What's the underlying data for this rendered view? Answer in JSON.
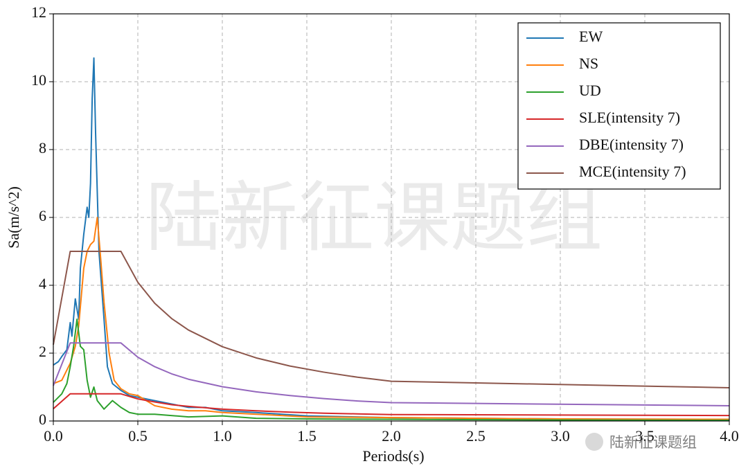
{
  "chart_data": {
    "type": "line",
    "xlabel": "Periods(s)",
    "ylabel": "Sa(m/s^2)",
    "xlim": [
      0,
      4
    ],
    "ylim": [
      0,
      12
    ],
    "xticks": [
      {
        "value": 0,
        "label": "0.0"
      },
      0.5,
      {
        "value": 1,
        "label": "1.0"
      },
      1.5,
      {
        "value": 2,
        "label": "2.0"
      },
      2.5,
      {
        "value": 3,
        "label": "3.0"
      },
      3.5,
      {
        "value": 4,
        "label": "4.0"
      }
    ],
    "yticks": [
      0,
      2,
      4,
      6,
      8,
      10,
      12
    ],
    "grid": true,
    "legend": "upper right",
    "watermark": "陆新征课题组",
    "series": [
      {
        "name": "EW",
        "color": "#1f77b4",
        "x": [
          0,
          0.03,
          0.05,
          0.08,
          0.1,
          0.11,
          0.13,
          0.15,
          0.16,
          0.18,
          0.2,
          0.21,
          0.22,
          0.23,
          0.24,
          0.25,
          0.27,
          0.3,
          0.32,
          0.35,
          0.4,
          0.45,
          0.5,
          0.6,
          0.7,
          0.8,
          0.9,
          1.0,
          1.2,
          1.5,
          2.0,
          3.0,
          4.0
        ],
        "values": [
          1.65,
          1.75,
          1.9,
          2.1,
          2.9,
          2.5,
          3.6,
          3.0,
          4.5,
          5.5,
          6.3,
          6.0,
          7.0,
          9.5,
          10.7,
          8.5,
          5.0,
          3.0,
          1.6,
          1.1,
          0.9,
          0.75,
          0.7,
          0.6,
          0.5,
          0.4,
          0.4,
          0.3,
          0.25,
          0.15,
          0.1,
          0.06,
          0.05
        ]
      },
      {
        "name": "NS",
        "color": "#ff7f0e",
        "x": [
          0,
          0.05,
          0.1,
          0.13,
          0.15,
          0.18,
          0.2,
          0.22,
          0.24,
          0.26,
          0.28,
          0.3,
          0.33,
          0.36,
          0.4,
          0.45,
          0.5,
          0.6,
          0.7,
          0.8,
          0.9,
          1.0,
          1.2,
          1.5,
          2.0,
          3.0,
          4.0
        ],
        "values": [
          1.1,
          1.2,
          1.7,
          2.2,
          2.8,
          4.5,
          5.0,
          5.2,
          5.3,
          6.0,
          4.8,
          3.5,
          2.0,
          1.2,
          0.95,
          0.8,
          0.75,
          0.45,
          0.35,
          0.3,
          0.3,
          0.25,
          0.2,
          0.12,
          0.1,
          0.06,
          0.05
        ]
      },
      {
        "name": "UD",
        "color": "#2ca02c",
        "x": [
          0,
          0.05,
          0.08,
          0.1,
          0.12,
          0.14,
          0.16,
          0.18,
          0.2,
          0.22,
          0.24,
          0.26,
          0.3,
          0.35,
          0.4,
          0.45,
          0.5,
          0.6,
          0.8,
          1.0,
          1.2,
          1.5,
          2.0,
          3.0,
          4.0
        ],
        "values": [
          0.55,
          0.8,
          1.1,
          1.6,
          2.2,
          3.0,
          2.2,
          2.1,
          1.2,
          0.7,
          1.0,
          0.6,
          0.35,
          0.6,
          0.4,
          0.25,
          0.2,
          0.2,
          0.12,
          0.15,
          0.08,
          0.06,
          0.05,
          0.03,
          0.02
        ]
      },
      {
        "name": "SLE(intensity 7)",
        "color": "#d62728",
        "x": [
          0,
          0.1,
          0.4,
          0.5,
          0.6,
          0.7,
          0.8,
          1.0,
          1.2,
          1.4,
          1.6,
          1.8,
          2.0,
          4.0
        ],
        "values": [
          0.36,
          0.8,
          0.8,
          0.65,
          0.56,
          0.48,
          0.43,
          0.35,
          0.3,
          0.26,
          0.23,
          0.21,
          0.19,
          0.16
        ]
      },
      {
        "name": "DBE(intensity 7)",
        "color": "#9467bd",
        "x": [
          0,
          0.1,
          0.4,
          0.5,
          0.6,
          0.7,
          0.8,
          1.0,
          1.2,
          1.4,
          1.6,
          1.8,
          2.0,
          4.0
        ],
        "values": [
          1.04,
          2.3,
          2.3,
          1.88,
          1.6,
          1.39,
          1.23,
          1.01,
          0.86,
          0.75,
          0.66,
          0.59,
          0.54,
          0.45
        ]
      },
      {
        "name": "MCE(intensity 7)",
        "color": "#8c564b",
        "x": [
          0,
          0.1,
          0.4,
          0.5,
          0.6,
          0.7,
          0.8,
          1.0,
          1.2,
          1.4,
          1.6,
          1.8,
          2.0,
          4.0
        ],
        "values": [
          2.25,
          5,
          5,
          4.09,
          3.47,
          3.02,
          2.68,
          2.19,
          1.86,
          1.62,
          1.44,
          1.29,
          1.17,
          0.98
        ]
      }
    ]
  }
}
